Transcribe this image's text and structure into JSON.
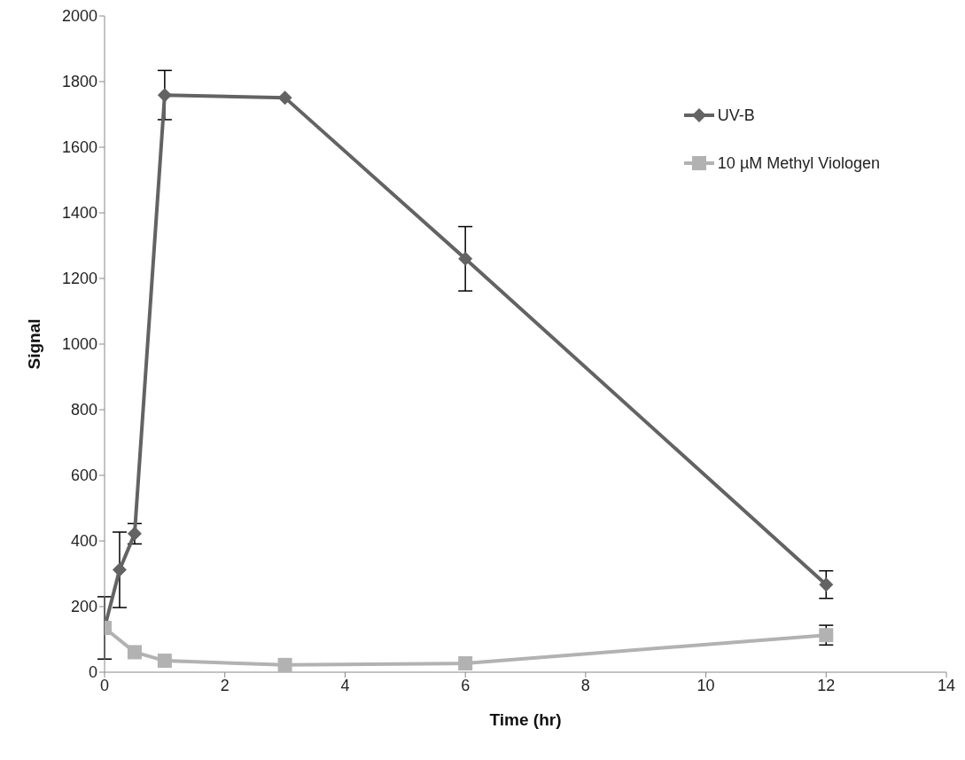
{
  "chart_data": {
    "type": "line",
    "xlabel": "Time (hr)",
    "ylabel": "Signal",
    "xlim": [
      0,
      14
    ],
    "xticks": [
      0,
      2,
      4,
      6,
      8,
      10,
      12,
      14
    ],
    "ylim": [
      0,
      2000
    ],
    "yticks": [
      0,
      200,
      400,
      600,
      800,
      1000,
      1200,
      1400,
      1600,
      1800,
      2000
    ],
    "grid": false,
    "legend": "top right",
    "series": [
      {
        "name": "UV-B",
        "color": "#636363",
        "marker": "diamond",
        "x": [
          0,
          0.25,
          0.5,
          1,
          3,
          6,
          12
        ],
        "values": [
          135,
          312,
          422,
          1759,
          1751,
          1260,
          267
        ],
        "errors": [
          95,
          115,
          31,
          75,
          null,
          98,
          42
        ]
      },
      {
        "name": "10 µM Methyl Viologen",
        "color": "#b2b2b2",
        "marker": "square",
        "x": [
          0,
          0.5,
          1,
          3,
          6,
          12
        ],
        "values": [
          135,
          61,
          35,
          22,
          27,
          113
        ],
        "errors": [
          null,
          null,
          null,
          null,
          null,
          30
        ]
      }
    ]
  }
}
